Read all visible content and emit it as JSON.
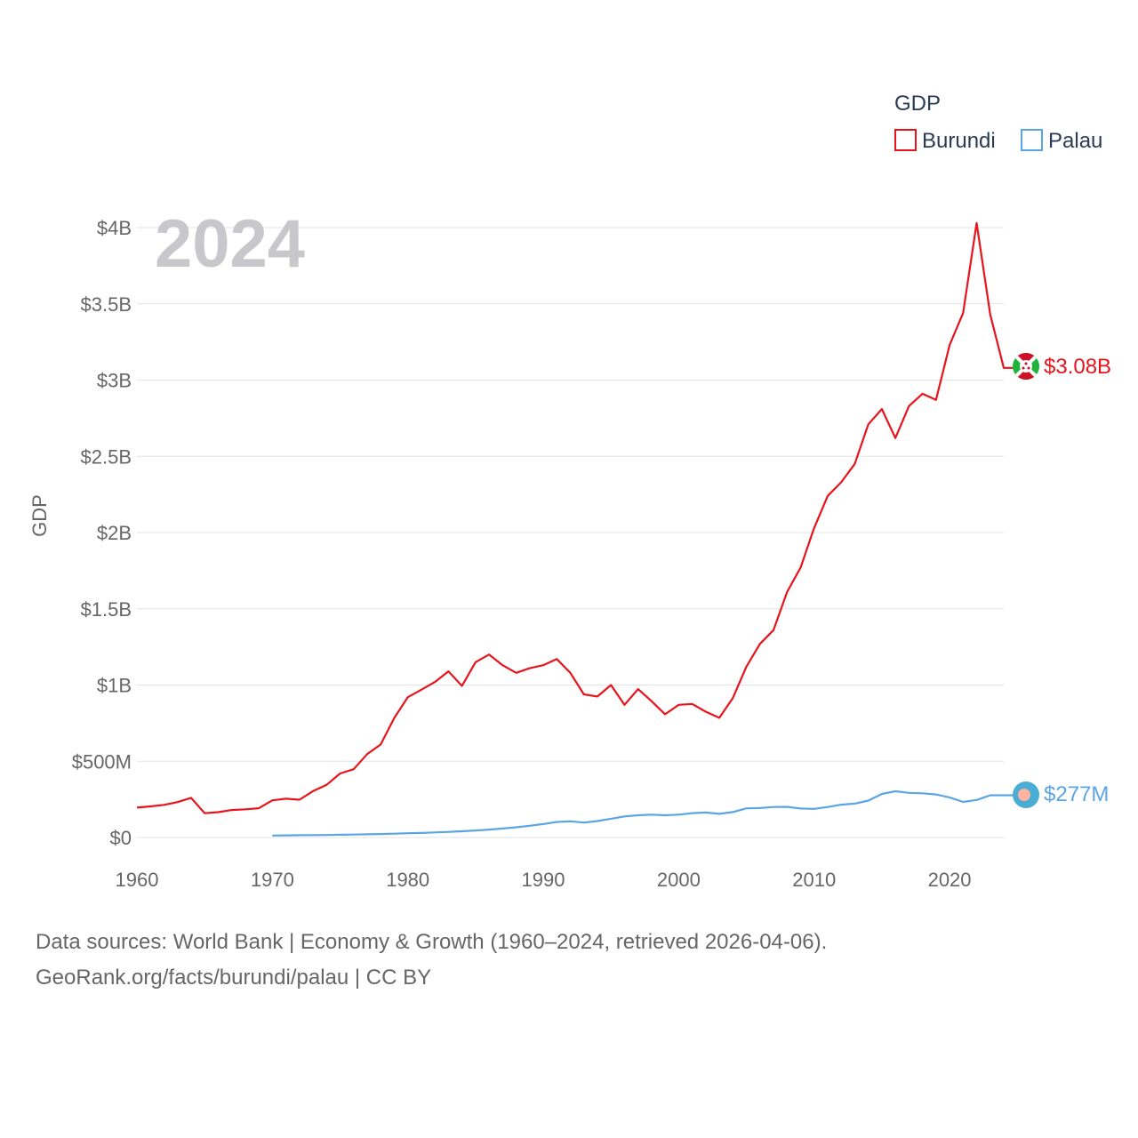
{
  "chart_data": {
    "type": "line",
    "title": "GDP",
    "legend_title": "GDP",
    "legend_position": "top-right",
    "ylabel": "GDP",
    "xlabel": "",
    "year_label": "2024",
    "xlim": [
      1960,
      2024
    ],
    "ylim": [
      0,
      4000000000
    ],
    "x_ticks": [
      1960,
      1970,
      1980,
      1990,
      2000,
      2010,
      2020
    ],
    "y_ticks": [
      {
        "value": 0,
        "label": "$0"
      },
      {
        "value": 500000000,
        "label": "$500M"
      },
      {
        "value": 1000000000,
        "label": "$1B"
      },
      {
        "value": 1500000000,
        "label": "$1.5B"
      },
      {
        "value": 2000000000,
        "label": "$2B"
      },
      {
        "value": 2500000000,
        "label": "$2.5B"
      },
      {
        "value": 3000000000,
        "label": "$3B"
      },
      {
        "value": 3500000000,
        "label": "$3.5B"
      },
      {
        "value": 4000000000,
        "label": "$4B"
      }
    ],
    "grid": true,
    "series": [
      {
        "name": "Burundi",
        "color": "#e8141c",
        "end_label": "$3.08B",
        "marker_icon": "burundi-flag-icon",
        "x": [
          1960,
          1961,
          1962,
          1963,
          1964,
          1965,
          1966,
          1967,
          1968,
          1969,
          1970,
          1971,
          1972,
          1973,
          1974,
          1975,
          1976,
          1977,
          1978,
          1979,
          1980,
          1981,
          1982,
          1983,
          1984,
          1985,
          1986,
          1987,
          1988,
          1989,
          1990,
          1991,
          1992,
          1993,
          1994,
          1995,
          1996,
          1997,
          1998,
          1999,
          2000,
          2001,
          2002,
          2003,
          2004,
          2005,
          2006,
          2007,
          2008,
          2009,
          2010,
          2011,
          2012,
          2013,
          2014,
          2015,
          2016,
          2017,
          2018,
          2019,
          2020,
          2021,
          2022,
          2023,
          2024
        ],
        "values": [
          196000000,
          204000000,
          214000000,
          232000000,
          260000000,
          159000000,
          166000000,
          180000000,
          185000000,
          192000000,
          244000000,
          254000000,
          248000000,
          304000000,
          345000000,
          420000000,
          448000000,
          547000000,
          610000000,
          784000000,
          920000000,
          969000000,
          1020000000,
          1090000000,
          994000000,
          1150000000,
          1200000000,
          1130000000,
          1080000000,
          1110000000,
          1130000000,
          1170000000,
          1080000000,
          939000000,
          925000000,
          1000000000,
          870000000,
          973000000,
          894000000,
          808000000,
          870000000,
          876000000,
          825000000,
          785000000,
          915000000,
          1120000000,
          1270000000,
          1360000000,
          1610000000,
          1770000000,
          2030000000,
          2240000000,
          2330000000,
          2450000000,
          2710000000,
          2810000000,
          2620000000,
          2830000000,
          2910000000,
          2870000000,
          3230000000,
          3440000000,
          4030000000,
          3430000000,
          3080000000
        ]
      },
      {
        "name": "Palau",
        "color": "#5ba4e5",
        "end_label": "$277M",
        "marker_icon": "palau-flag-icon",
        "x": [
          1970,
          1971,
          1972,
          1973,
          1974,
          1975,
          1976,
          1977,
          1978,
          1979,
          1980,
          1981,
          1982,
          1983,
          1984,
          1985,
          1986,
          1987,
          1988,
          1989,
          1990,
          1991,
          1992,
          1993,
          1994,
          1995,
          1996,
          1997,
          1998,
          1999,
          2000,
          2001,
          2002,
          2003,
          2004,
          2005,
          2006,
          2007,
          2008,
          2009,
          2010,
          2011,
          2012,
          2013,
          2014,
          2015,
          2016,
          2017,
          2018,
          2019,
          2020,
          2021,
          2022,
          2023,
          2024
        ],
        "values": [
          13000000,
          14000000,
          15000000,
          16000000,
          16500000,
          18000000,
          19000000,
          21000000,
          23000000,
          25000000,
          28000000,
          30000000,
          33000000,
          37000000,
          41000000,
          46000000,
          52000000,
          59000000,
          67000000,
          77000000,
          88000000,
          102000000,
          106000000,
          98000000,
          108000000,
          123000000,
          138000000,
          146000000,
          150000000,
          146000000,
          150000000,
          160000000,
          164000000,
          155000000,
          167000000,
          191000000,
          193000000,
          200000000,
          201000000,
          190000000,
          188000000,
          200000000,
          215000000,
          222000000,
          242000000,
          286000000,
          303000000,
          293000000,
          290000000,
          282000000,
          263000000,
          233000000,
          246000000,
          277000000,
          277000000
        ]
      }
    ]
  },
  "footer": {
    "source": "Data sources: World Bank | Economy & Growth (1960–2024, retrieved 2026-04-06).",
    "link": "GeoRank.org/facts/burundi/palau | CC BY"
  }
}
